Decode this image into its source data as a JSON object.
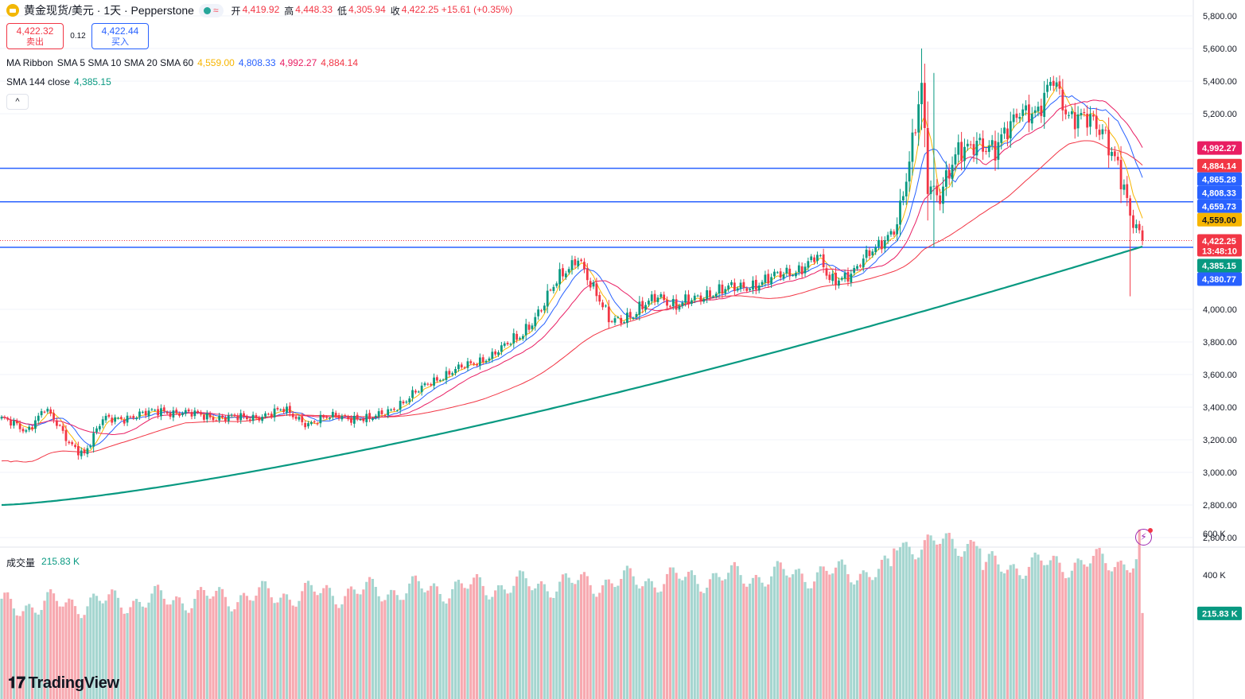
{
  "header": {
    "symbol_title": "黄金现货/美元 · 1天 · Pepperstone",
    "status_wave": "≈",
    "ohlc": [
      {
        "label": "开",
        "value": "4,419.92"
      },
      {
        "label": "高",
        "value": "4,448.33"
      },
      {
        "label": "低",
        "value": "4,305.94"
      },
      {
        "label": "收",
        "value": "4,422.25 +15.61 (+0.35%)"
      }
    ]
  },
  "trade": {
    "sell_price": "4,422.32",
    "sell_label": "卖出",
    "spread": "0.12",
    "buy_price": "4,422.44",
    "buy_label": "买入"
  },
  "indicators": {
    "ma_ribbon": {
      "name": "MA Ribbon",
      "args": "SMA 5 SMA 10 SMA 20 SMA 60",
      "values": [
        {
          "value": "4,559.00",
          "color": "#f7b500"
        },
        {
          "value": "4,808.33",
          "color": "#2962ff"
        },
        {
          "value": "4,992.27",
          "color": "#e91e63"
        },
        {
          "value": "4,884.14",
          "color": "#f23645"
        }
      ]
    },
    "sma144": {
      "name": "SMA 144 close",
      "value": "4,385.15",
      "color": "#089981"
    },
    "collapse_icon": "^"
  },
  "volume": {
    "label": "成交量",
    "value": "215.83 K",
    "axis_label": "215.83 K"
  },
  "branding": {
    "logo_mark": "𝟏𝟕",
    "logo_text": "TradingView"
  },
  "price_labels": [
    {
      "text": "4,992.27",
      "bg": "#e91e63",
      "price": 4992.27
    },
    {
      "text": "4,884.14",
      "bg": "#f23645",
      "price": 4884.14
    },
    {
      "text": "4,865.28",
      "bg": "#2962ff",
      "price": 4865.28
    },
    {
      "text": "4,808.33",
      "bg": "#2962ff",
      "price": 4808.33
    },
    {
      "text": "4,659.73",
      "bg": "#2962ff",
      "price": 4659.73
    },
    {
      "text": "4,559.00",
      "bg": "#f7b500",
      "price": 4559.0,
      "dark": true
    },
    {
      "text": "4,422.25",
      "bg": "#f23645",
      "price": 4422.25
    },
    {
      "text": "13:48:10",
      "bg": "#f23645",
      "price": 4422.25,
      "sub": true
    },
    {
      "text": "4,385.15",
      "bg": "#089981",
      "price": 4385.15
    },
    {
      "text": "4,380.77",
      "bg": "#2962ff",
      "price": 4380.77
    }
  ],
  "chart_data": {
    "type": "candlestick",
    "title": "黄金现货/美元 · 1天 · Pepperstone",
    "price_axis_ticks": [
      "5,800.00",
      "5,600.00",
      "5,400.00",
      "5,200.00",
      "4,000.00",
      "3,800.00",
      "3,600.00",
      "3,400.00",
      "3,200.00",
      "3,000.00",
      "2,800.00",
      "2,600.00"
    ],
    "volume_axis_ticks": [
      "600 K",
      "400 K"
    ],
    "ylim": [
      2560,
      5880
    ],
    "horizontal_levels": [
      4865.28,
      4659.73,
      4380.77
    ],
    "current_price": 4422.25,
    "sma144_end": 4385.15,
    "ma_ends": {
      "sma5": 4559.0,
      "sma10": 4808.33,
      "sma20": 4992.27,
      "sma60": 4884.14
    },
    "anchors": [
      [
        0,
        3330
      ],
      [
        8,
        3250
      ],
      [
        14,
        3400
      ],
      [
        22,
        3180
      ],
      [
        27,
        3120
      ],
      [
        33,
        3320
      ],
      [
        45,
        3350
      ],
      [
        52,
        3380
      ],
      [
        60,
        3360
      ],
      [
        70,
        3340
      ],
      [
        80,
        3330
      ],
      [
        92,
        3380
      ],
      [
        100,
        3300
      ],
      [
        110,
        3350
      ],
      [
        120,
        3320
      ],
      [
        132,
        3440
      ],
      [
        140,
        3560
      ],
      [
        150,
        3640
      ],
      [
        160,
        3720
      ],
      [
        168,
        3820
      ],
      [
        176,
        4000
      ],
      [
        182,
        4200
      ],
      [
        188,
        4330
      ],
      [
        192,
        4140
      ],
      [
        198,
        3950
      ],
      [
        206,
        3950
      ],
      [
        214,
        4100
      ],
      [
        220,
        4010
      ],
      [
        230,
        4100
      ],
      [
        240,
        4130
      ],
      [
        250,
        4180
      ],
      [
        260,
        4250
      ],
      [
        266,
        4320
      ],
      [
        270,
        4180
      ],
      [
        278,
        4230
      ],
      [
        286,
        4400
      ],
      [
        292,
        4520
      ],
      [
        296,
        4870
      ],
      [
        300,
        5380
      ],
      [
        302,
        4800
      ],
      [
        306,
        4700
      ],
      [
        312,
        4950
      ],
      [
        318,
        5050
      ],
      [
        324,
        4950
      ],
      [
        332,
        5250
      ],
      [
        338,
        5180
      ],
      [
        343,
        5420
      ],
      [
        348,
        5200
      ],
      [
        354,
        5150
      ],
      [
        360,
        5080
      ],
      [
        364,
        4900
      ],
      [
        368,
        4550
      ],
      [
        372,
        4422
      ]
    ],
    "spikes": [
      {
        "i": 300,
        "high": 5600,
        "low": 5100
      },
      {
        "i": 304,
        "high": 5450,
        "low": 4380
      },
      {
        "i": 368,
        "high": 4700,
        "low": 4080
      }
    ]
  }
}
